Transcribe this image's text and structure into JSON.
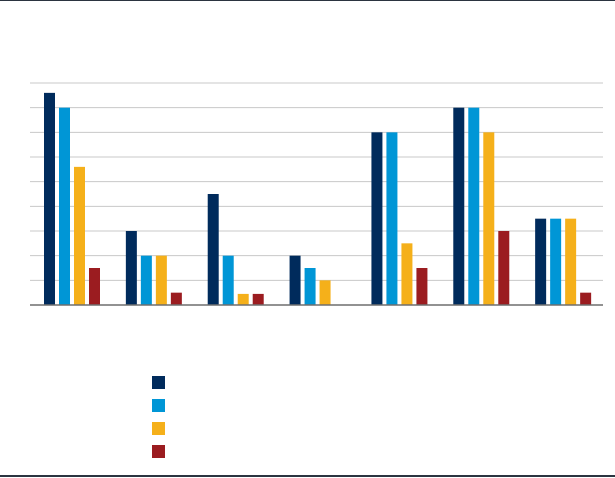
{
  "chart_data": {
    "type": "bar",
    "title": "",
    "xlabel": "",
    "ylabel": "",
    "ylim": [
      0,
      9
    ],
    "gridlines": true,
    "legend_position": "bottom-center",
    "categories": [
      "",
      "",
      "",
      "",
      "",
      "",
      ""
    ],
    "series": [
      {
        "color": "#002b5c",
        "values": [
          8.6,
          3.0,
          4.5,
          2.0,
          7.0,
          8.0,
          3.5
        ]
      },
      {
        "color": "#0096d6",
        "values": [
          8.0,
          2.0,
          2.0,
          1.5,
          7.0,
          8.0,
          3.5
        ]
      },
      {
        "color": "#f5b01a",
        "values": [
          5.6,
          2.0,
          0.45,
          1.0,
          2.5,
          7.0,
          3.5
        ]
      },
      {
        "color": "#9b1c20",
        "values": [
          1.5,
          0.5,
          0.45,
          0.0,
          1.5,
          3.0,
          0.5
        ]
      }
    ]
  }
}
